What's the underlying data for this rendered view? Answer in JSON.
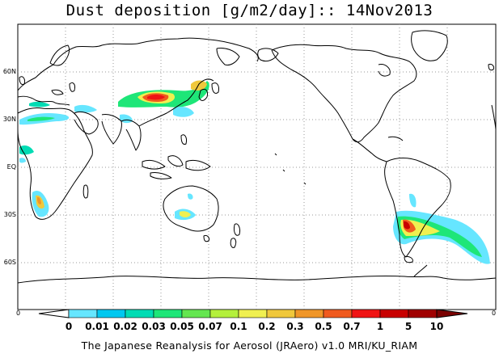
{
  "title": "Dust deposition [g/m2/day]:: 14Nov2013",
  "footer": "The Japanese Reanalysis for Aerosol (JRAero) v1.0 MRI/KU_RIAM",
  "lat_labels": [
    "60N",
    "30N",
    "EQ",
    "30S",
    "60S"
  ],
  "axis_edge_left": "0",
  "axis_edge_right": "0",
  "colorbar": {
    "labels": [
      "0",
      "0.01",
      "0.02",
      "0.03",
      "0.05",
      "0.07",
      "0.1",
      "0.2",
      "0.3",
      "0.5",
      "0.7",
      "1",
      "5",
      "10"
    ],
    "colors": [
      "#ffffff",
      "#66e6ff",
      "#00c8f0",
      "#00dcb4",
      "#1ee678",
      "#64e650",
      "#b4f03c",
      "#f0f050",
      "#f0c83c",
      "#f09628",
      "#f05a1e",
      "#f01414",
      "#c80000",
      "#a00000",
      "#7a0000"
    ]
  },
  "colors": {
    "land_outline": "#000000",
    "grid": "#9a9a9a",
    "low_dust": "#66e6ff",
    "mid_dust": "#1ee678",
    "high_dust": "#f01414"
  }
}
